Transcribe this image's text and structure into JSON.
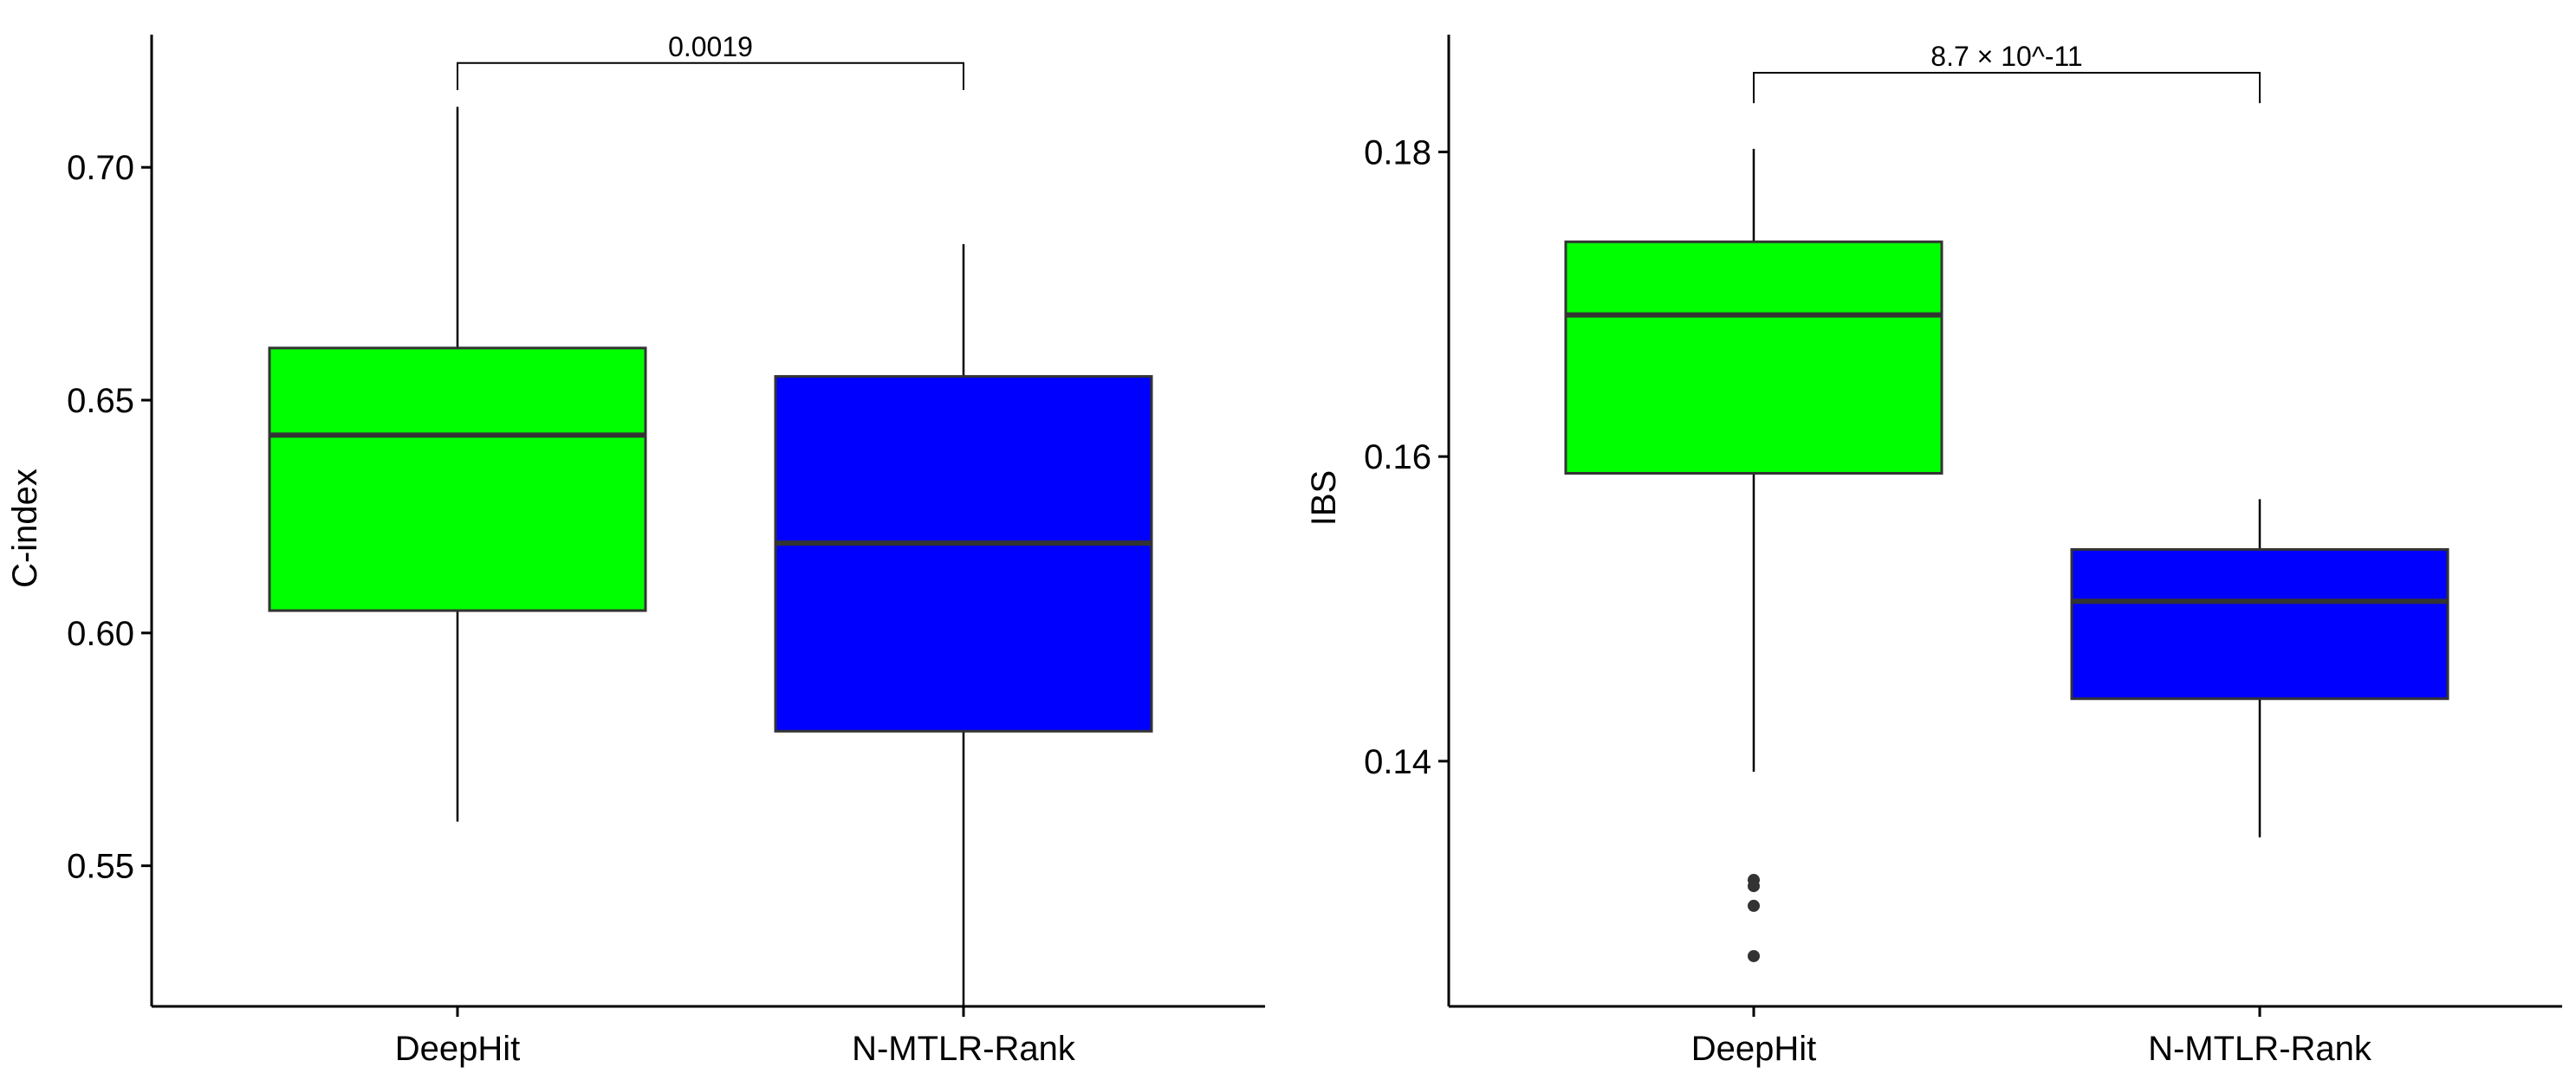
{
  "chart_data": [
    {
      "type": "box",
      "xlabel": "",
      "ylabel": "C-index",
      "ylim": [
        0.5198,
        0.7285
      ],
      "yticks": [
        0.55,
        0.6,
        0.65,
        0.7
      ],
      "ytick_labels": [
        "0.55",
        "0.60",
        "0.65",
        "0.70"
      ],
      "categories": [
        "DeepHit",
        "N-MTLR-Rank"
      ],
      "series": [
        {
          "fill": "#00ff00",
          "whisker_low": 0.5595,
          "q1": 0.6048,
          "median": 0.6425,
          "q3": 0.6612,
          "whisker_high": 0.713,
          "outliers": []
        },
        {
          "fill": "#0000ff",
          "whisker_low": 0.5195,
          "q1": 0.5789,
          "median": 0.6193,
          "q3": 0.6551,
          "whisker_high": 0.6835,
          "outliers": []
        }
      ],
      "significance": {
        "label": "0.0019",
        "y": 0.7224,
        "drop_to": 0.7166
      }
    },
    {
      "type": "box",
      "xlabel": "",
      "ylabel": "IBS",
      "ylim": [
        0.1239,
        0.1877
      ],
      "yticks": [
        0.14,
        0.16,
        0.18
      ],
      "ytick_labels": [
        "0.14",
        "0.16",
        "0.18"
      ],
      "categories": [
        "DeepHit",
        "N-MTLR-Rank"
      ],
      "series": [
        {
          "fill": "#00ff00",
          "whisker_low": 0.1393,
          "q1": 0.1589,
          "median": 0.1693,
          "q3": 0.1741,
          "whisker_high": 0.1802,
          "outliers": [
            0.1322,
            0.1318,
            0.1305,
            0.1272
          ]
        },
        {
          "fill": "#0000ff",
          "whisker_low": 0.135,
          "q1": 0.1441,
          "median": 0.1505,
          "q3": 0.1539,
          "whisker_high": 0.1572,
          "outliers": []
        }
      ],
      "significance": {
        "label": "8.7 × 10^-11",
        "y": 0.1852,
        "drop_to": 0.1832
      }
    }
  ]
}
